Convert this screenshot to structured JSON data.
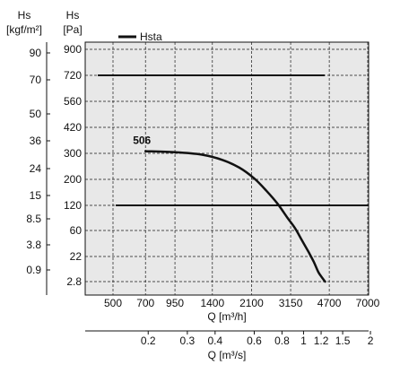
{
  "chart_data": {
    "type": "line",
    "title": "",
    "legend": {
      "label": "Hsta",
      "placement": "top-left"
    },
    "y_axes": [
      {
        "label": "Hs",
        "unit": "[kgf/m²]",
        "ticks": [
          "90",
          "70",
          "50",
          "36",
          "24",
          "15",
          "8.5",
          "3.8",
          "0.9"
        ]
      },
      {
        "label": "Hs",
        "unit": "[Pa]",
        "ticks": [
          "900",
          "720",
          "560",
          "420",
          "300",
          "200",
          "120",
          "60",
          "22",
          "2.8"
        ]
      }
    ],
    "x_axes": [
      {
        "label": "Q [m³/h]",
        "ticks": [
          "500",
          "700",
          "950",
          "1400",
          "2100",
          "3150",
          "4700",
          "7000"
        ]
      },
      {
        "label": "Q [m³/s]",
        "ticks": [
          "0.2",
          "0.3",
          "0.4",
          "0.6",
          "0.8",
          "1",
          "1.2",
          "1.5",
          "2"
        ]
      }
    ],
    "grid": true,
    "reference_lines_pa": [
      720,
      120
    ],
    "series": [
      {
        "name": "506",
        "x_unit": "m³/h",
        "y_unit": "Pa",
        "x": [
          700,
          950,
          1250,
          1550,
          1850,
          2150,
          2450,
          2750,
          3050,
          3300,
          3550,
          3800,
          4000,
          4200,
          4400,
          4500
        ],
        "y": [
          310,
          305,
          295,
          275,
          245,
          205,
          165,
          125,
          90,
          65,
          45,
          28,
          18,
          10,
          5,
          2.8
        ]
      }
    ]
  }
}
